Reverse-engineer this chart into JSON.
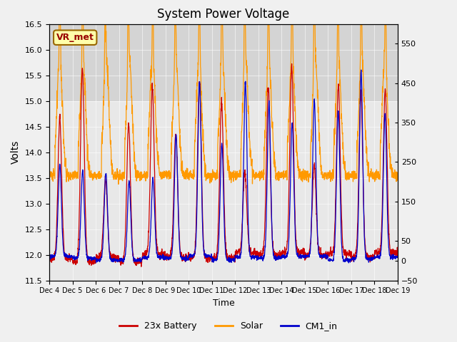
{
  "title": "System Power Voltage",
  "xlabel": "Time",
  "ylabel": "Volts",
  "ylim": [
    11.5,
    16.5
  ],
  "ylim2": [
    -50,
    600
  ],
  "yticks": [
    11.5,
    12.0,
    12.5,
    13.0,
    13.5,
    14.0,
    14.5,
    15.0,
    15.5,
    16.0,
    16.5
  ],
  "yticks2": [
    -50,
    0,
    50,
    150,
    250,
    350,
    450,
    550
  ],
  "shaded_region": [
    15.0,
    16.5
  ],
  "bg_color": "#f0f0f0",
  "plot_bg_color": "#e8e8e8",
  "legend_entries": [
    "23x Battery",
    "Solar",
    "CM1_in"
  ],
  "legend_colors": [
    "#cc0000",
    "#ff9900",
    "#0000cc"
  ],
  "vr_met_label": "VR_met",
  "vr_met_bg": "#ffffaa",
  "vr_met_border": "#996600",
  "vr_met_text_color": "#990000",
  "num_days": 15,
  "tick_labels": [
    "Dec 4",
    "Dec 5",
    "Dec 6",
    "Dec 7",
    "Dec 8",
    "Dec 9",
    "Dec 10",
    "Dec 11",
    "Dec 12",
    "Dec 13",
    "Dec 14",
    "Dec 15",
    "Dec 16",
    "Dec 17",
    "Dec 18",
    "Dec 19"
  ]
}
